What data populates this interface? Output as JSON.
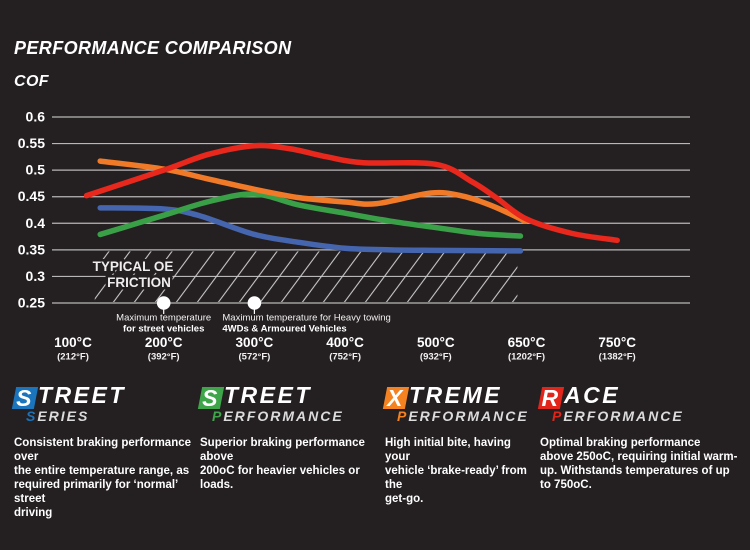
{
  "header": {
    "title": "PERFORMANCE COMPARISON",
    "y_axis_title": "COF"
  },
  "colors": {
    "background": "#242021",
    "gridline": "#b9b6b7",
    "hatch_line": "#d0cecf",
    "axis_text": "#f3f1f1",
    "marker_dot": "#ffffff"
  },
  "chart_data": {
    "type": "line",
    "title": "PERFORMANCE COMPARISON",
    "ylabel": "COF",
    "xlabel": "",
    "ylim": [
      0.25,
      0.6
    ],
    "grid": "horizontal",
    "legend_position": "none",
    "y_ticks": [
      0.6,
      0.55,
      0.5,
      0.45,
      0.4,
      0.35,
      0.3,
      0.25
    ],
    "x_ticks": [
      {
        "temp": 100,
        "celsius": "100°C",
        "fahrenheit": "(212°F)"
      },
      {
        "temp": 200,
        "celsius": "200°C",
        "fahrenheit": "(392°F)"
      },
      {
        "temp": 300,
        "celsius": "300°C",
        "fahrenheit": "(572°F)"
      },
      {
        "temp": 400,
        "celsius": "400°C",
        "fahrenheit": "(752°F)"
      },
      {
        "temp": 500,
        "celsius": "500°C",
        "fahrenheit": "(932°F)"
      },
      {
        "temp": 650,
        "celsius": "650°C",
        "fahrenheit": "(1202°F)"
      },
      {
        "temp": 750,
        "celsius": "750°C",
        "fahrenheit": "(1382°F)"
      }
    ],
    "oe_band": {
      "label_line1": "TYPICAL OE",
      "label_line2": "FRICTION",
      "cof_from": 0.25,
      "cof_to": 0.35,
      "temp_from": 124,
      "temp_to": 635
    },
    "markers": [
      {
        "temp": 200,
        "cof": 0.25,
        "align": "center",
        "label_line1": "Maximum temperature",
        "label_line2": "for street vehicles"
      },
      {
        "temp": 300,
        "cof": 0.25,
        "align": "left",
        "label_line1": "Maximum temperature for Heavy towing",
        "label_line2": "4WDs & Armoured Vehicles"
      }
    ],
    "series": [
      {
        "name": "Street Series",
        "color": "#4565ae",
        "points": [
          [
            130,
            0.429
          ],
          [
            200,
            0.427
          ],
          [
            240,
            0.414
          ],
          [
            300,
            0.379
          ],
          [
            350,
            0.364
          ],
          [
            400,
            0.353
          ],
          [
            450,
            0.35
          ],
          [
            500,
            0.349
          ],
          [
            640,
            0.348
          ]
        ]
      },
      {
        "name": "Street Performance",
        "color": "#3aa048",
        "points": [
          [
            130,
            0.379
          ],
          [
            200,
            0.415
          ],
          [
            250,
            0.441
          ],
          [
            300,
            0.455
          ],
          [
            350,
            0.434
          ],
          [
            400,
            0.419
          ],
          [
            450,
            0.404
          ],
          [
            500,
            0.392
          ],
          [
            570,
            0.381
          ],
          [
            640,
            0.376
          ]
        ]
      },
      {
        "name": "Xtreme Performance",
        "color": "#f07a28",
        "points": [
          [
            130,
            0.517
          ],
          [
            200,
            0.502
          ],
          [
            250,
            0.483
          ],
          [
            300,
            0.464
          ],
          [
            350,
            0.448
          ],
          [
            400,
            0.44
          ],
          [
            435,
            0.437
          ],
          [
            495,
            0.457
          ],
          [
            545,
            0.451
          ],
          [
            595,
            0.432
          ],
          [
            648,
            0.404
          ]
        ]
      },
      {
        "name": "Race Performance",
        "color": "#e8271d",
        "points": [
          [
            115,
            0.452
          ],
          [
            200,
            0.5
          ],
          [
            250,
            0.53
          ],
          [
            300,
            0.546
          ],
          [
            340,
            0.54
          ],
          [
            380,
            0.525
          ],
          [
            420,
            0.514
          ],
          [
            500,
            0.511
          ],
          [
            560,
            0.478
          ],
          [
            600,
            0.448
          ],
          [
            650,
            0.408
          ],
          [
            700,
            0.381
          ],
          [
            750,
            0.368
          ]
        ]
      }
    ]
  },
  "brands": [
    {
      "line1_initial": "S",
      "line1_rest": "TREET",
      "line2_initial": "S",
      "line2_rest": "ERIES",
      "color": "#1b75bc",
      "description": "Consistent braking performance over\nthe entire temperature range, as\nrequired primarily for ‘normal’ street\ndriving"
    },
    {
      "line1_initial": "S",
      "line1_rest": "TREET",
      "line2_initial": "P",
      "line2_rest": "ERFORMANCE",
      "color": "#3fa54a",
      "description": "Superior braking performance above\n200oC for heavier vehicles or loads."
    },
    {
      "line1_initial": "X",
      "line1_rest": "TREME",
      "line2_initial": "P",
      "line2_rest": "ERFORMANCE",
      "color": "#f58220",
      "description": "High initial bite, having your\nvehicle ‘brake-ready’ from the\nget-go."
    },
    {
      "line1_initial": "R",
      "line1_rest": "ACE",
      "line2_initial": "P",
      "line2_rest": "ERFORMANCE",
      "color": "#e1251b",
      "description": "Optimal braking performance\nabove 250oC, requiring initial warm-\nup. Withstands temperatures of up\nto 750oC."
    }
  ]
}
